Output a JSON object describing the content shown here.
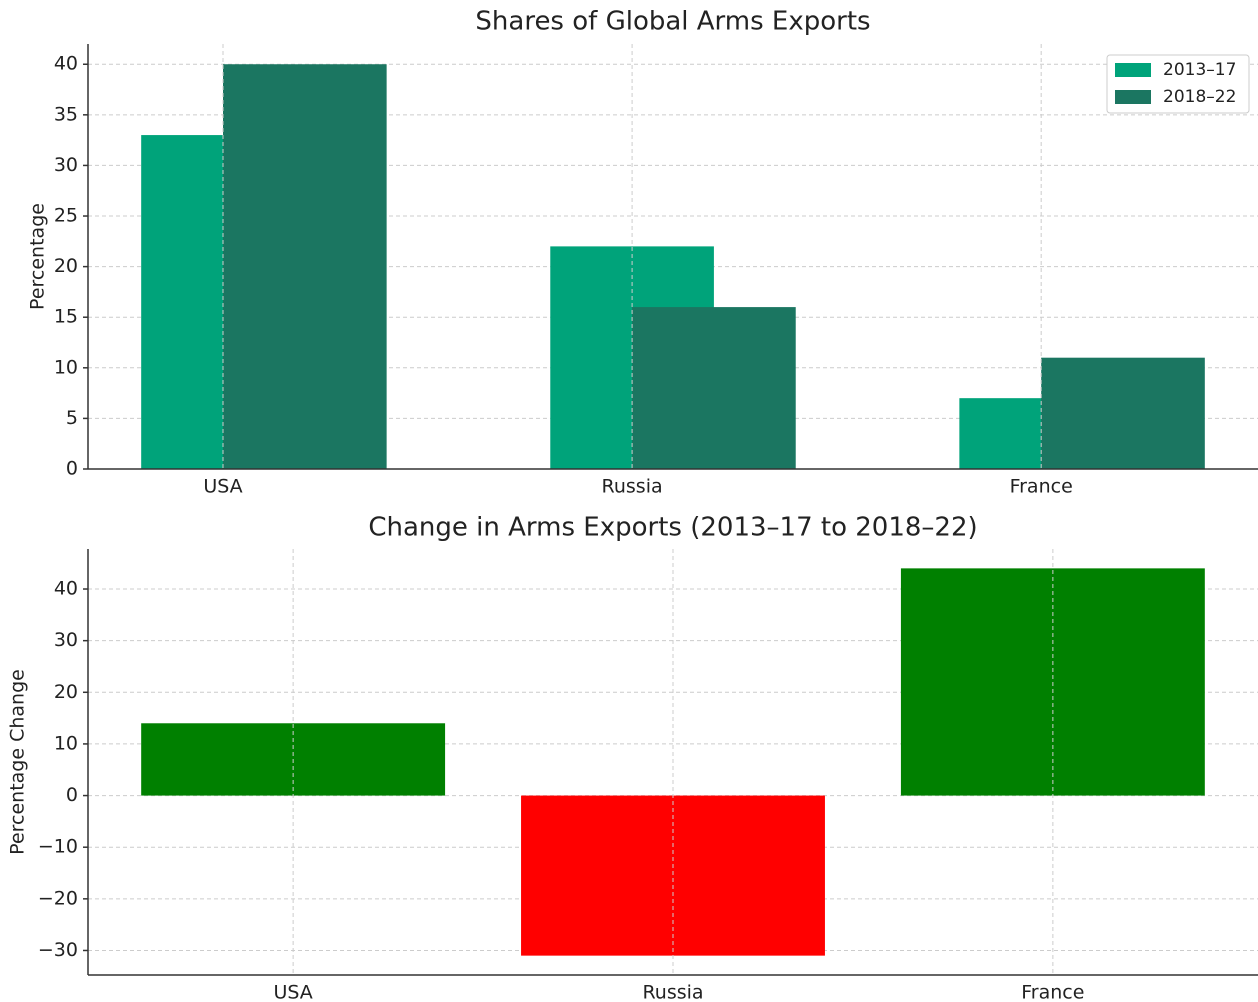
{
  "chart_data": [
    {
      "type": "bar",
      "title": "Shares of Global Arms Exports",
      "ylabel": "Percentage",
      "categories": [
        "USA",
        "Russia",
        "France"
      ],
      "series": [
        {
          "name": "2013–17",
          "color": "#00a37a",
          "values": [
            33,
            22,
            7
          ]
        },
        {
          "name": "2018–22",
          "color": "#1b7661",
          "values": [
            40,
            16,
            11
          ]
        }
      ],
      "ylim": [
        0,
        42
      ],
      "yticks": [
        0,
        5,
        10,
        15,
        20,
        25,
        30,
        35,
        40
      ],
      "grid": true,
      "legend": "upper right"
    },
    {
      "type": "bar",
      "title": "Change in Arms Exports (2013–17 to 2018–22)",
      "ylabel": "Percentage Change",
      "categories": [
        "USA",
        "Russia",
        "France"
      ],
      "values": [
        14,
        -31,
        44
      ],
      "colors": [
        "#008000",
        "#ff0000",
        "#008000"
      ],
      "ylim": [
        -34.75,
        47.75
      ],
      "yticks": [
        {
          "value": -30,
          "label": "−30"
        },
        {
          "value": -20,
          "label": "−20"
        },
        {
          "value": -10,
          "label": "−10"
        },
        0,
        10,
        20,
        30,
        40
      ],
      "grid": true
    }
  ]
}
